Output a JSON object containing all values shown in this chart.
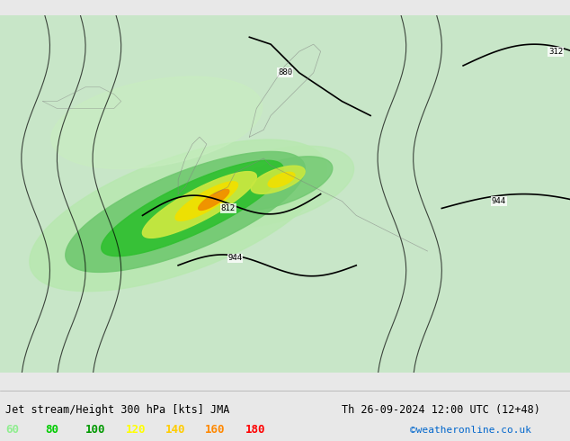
{
  "title_left": "Jet stream/Height 300 hPa [kts] JMA",
  "title_right": "Th 26-09-2024 12:00 UTC (12+48)",
  "credit": "©weatheronline.co.uk",
  "legend_values": [
    60,
    80,
    100,
    120,
    140,
    160,
    180
  ],
  "legend_colors": [
    "#90ee90",
    "#00cc00",
    "#009900",
    "#ffff00",
    "#ffcc00",
    "#ff8800",
    "#ff0000"
  ],
  "bg_color": "#e8e8e8",
  "map_bg": "#c8e6c8",
  "sea_color": "#d0d8e0",
  "contour_color": "#000000",
  "border_color": "#808080",
  "figsize": [
    6.34,
    4.9
  ],
  "dpi": 100
}
